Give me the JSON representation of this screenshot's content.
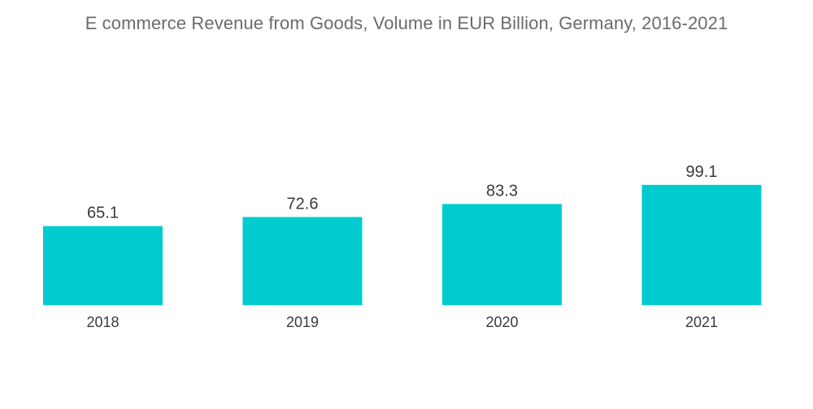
{
  "chart_data": {
    "type": "bar",
    "title": "E commerce Revenue from Goods, Volume in EUR Billion, Germany, 2016-2021",
    "xlabel": "",
    "ylabel": "",
    "categories": [
      "2018",
      "2019",
      "2020",
      "2021"
    ],
    "values": [
      65.1,
      72.6,
      83.3,
      99.1
    ],
    "value_labels": [
      "65.1",
      "72.6",
      "83.3",
      "99.1"
    ],
    "bar_color": "#00cccf",
    "grid": false,
    "legend": "none"
  }
}
